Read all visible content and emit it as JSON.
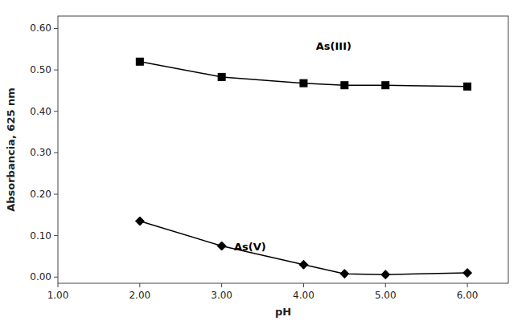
{
  "chart_data": {
    "type": "line",
    "xlabel": "pH",
    "ylabel": "Absorbancia, 625 nm",
    "x": [
      2.0,
      3.0,
      4.0,
      4.5,
      5.0,
      6.0
    ],
    "series": [
      {
        "color": "#000000",
        "marker": "square",
        "line_style": "solid",
        "values": [
          0.52,
          0.483,
          0.468,
          0.463,
          0.463,
          0.46
        ]
      },
      {
        "color": "#000000",
        "marker": "diamond",
        "line_style": "solid",
        "values": [
          0.135,
          0.075,
          0.03,
          0.008,
          0.006,
          0.01
        ]
      }
    ],
    "annotations": [
      {
        "text": "As(III)",
        "x": 4.15,
        "y": 0.548
      },
      {
        "text": "As(V)",
        "x": 3.15,
        "y": 0.065
      }
    ],
    "xlim": [
      1.0,
      6.5
    ],
    "ylim": [
      -0.015,
      0.63
    ],
    "xticks": [
      {
        "value": 1.0,
        "label": "1.00"
      },
      {
        "value": 2.0,
        "label": "2.00"
      },
      {
        "value": 3.0,
        "label": "3.00"
      },
      {
        "value": 4.0,
        "label": "4.00"
      },
      {
        "value": 5.0,
        "label": "5.00"
      },
      {
        "value": 6.0,
        "label": "6.00"
      }
    ],
    "yticks": [
      {
        "value": 0.0,
        "label": "0.00"
      },
      {
        "value": 0.1,
        "label": "0.10"
      },
      {
        "value": 0.2,
        "label": "0.20"
      },
      {
        "value": 0.3,
        "label": "0.30"
      },
      {
        "value": 0.4,
        "label": "0.40"
      },
      {
        "value": 0.5,
        "label": "0.50"
      },
      {
        "value": 0.6,
        "label": "0.60"
      }
    ],
    "grid": false
  }
}
